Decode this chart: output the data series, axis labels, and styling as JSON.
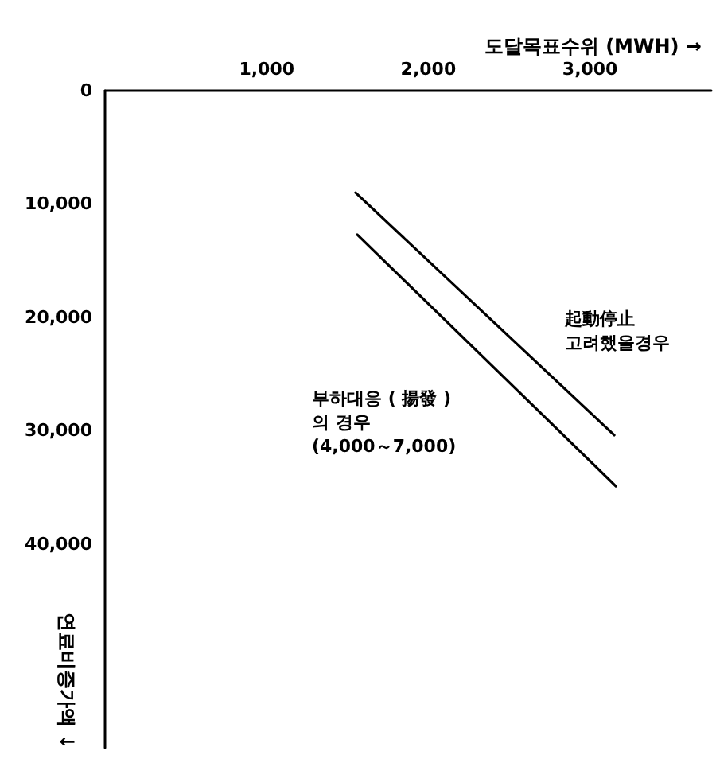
{
  "chart_data": {
    "type": "line",
    "xlabel": "도달목표수위 (MWH) →",
    "ylabel": "연료비증가액 ↓",
    "xlim": [
      0,
      3750
    ],
    "ylim": [
      58000,
      0
    ],
    "xticks": [
      {
        "value": 1000,
        "label": "1,000"
      },
      {
        "value": 2000,
        "label": "2,000"
      },
      {
        "value": 3000,
        "label": "3,000"
      }
    ],
    "yticks": [
      {
        "value": 0,
        "label": "0"
      },
      {
        "value": 10000,
        "label": "10,000"
      },
      {
        "value": 20000,
        "label": "20,000"
      },
      {
        "value": 30000,
        "label": "30,000"
      },
      {
        "value": 40000,
        "label": "40,000"
      }
    ],
    "series": [
      {
        "color": "#000000",
        "x": [
          1550,
          3150
        ],
        "values": [
          9000,
          30400
        ]
      },
      {
        "color": "#000000",
        "x": [
          1560,
          3160
        ],
        "values": [
          12700,
          34900
        ]
      }
    ],
    "annotations": [
      "起動停止\n고려했을경우",
      "부하대응 ( 揚發 )\n의 경우\n(4,000～7,000)"
    ],
    "grid": false,
    "marker": "none",
    "line_style": "solid"
  }
}
